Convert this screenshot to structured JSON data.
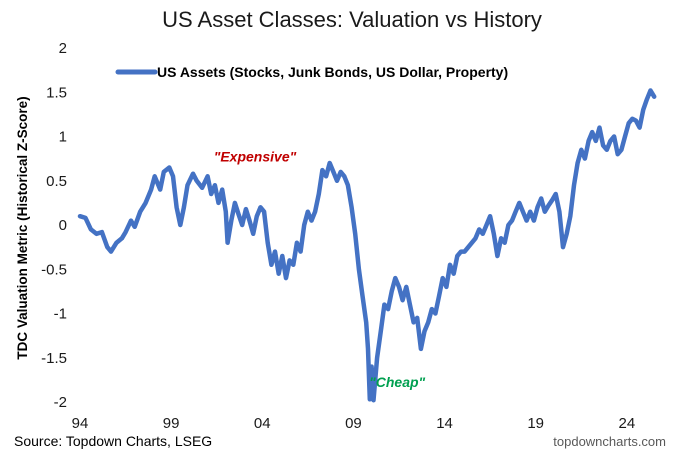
{
  "chart_data": {
    "type": "line",
    "title": "US Asset Classes: Valuation vs History",
    "xlabel": "",
    "ylabel": "TDC Valuation Metric (Historical Z-Score)",
    "xlim": [
      1994,
      2025.6
    ],
    "ylim": [
      -2,
      2
    ],
    "y_ticks": [
      "2",
      "1.5",
      "1",
      "0.5",
      "0",
      "-0.5",
      "-1",
      "-1.5",
      "-2"
    ],
    "y_tick_values": [
      2,
      1.5,
      1,
      0.5,
      0,
      -0.5,
      -1,
      -1.5,
      -2
    ],
    "x_ticks": [
      "94",
      "99",
      "04",
      "09",
      "14",
      "19",
      "24"
    ],
    "x_tick_values": [
      1994,
      1999,
      2004,
      2009,
      2014,
      2019,
      2024
    ],
    "grid": false,
    "legend_position": "top",
    "series": [
      {
        "name": "US Assets (Stocks, Junk Bonds, US Dollar, Property)",
        "color": "#4472C4",
        "points": [
          [
            1994.0,
            0.1
          ],
          [
            1994.3,
            0.08
          ],
          [
            1994.6,
            -0.05
          ],
          [
            1994.9,
            -0.1
          ],
          [
            1995.2,
            -0.08
          ],
          [
            1995.5,
            -0.25
          ],
          [
            1995.7,
            -0.3
          ],
          [
            1996.0,
            -0.2
          ],
          [
            1996.3,
            -0.15
          ],
          [
            1996.5,
            -0.08
          ],
          [
            1996.8,
            0.05
          ],
          [
            1997.0,
            -0.02
          ],
          [
            1997.3,
            0.15
          ],
          [
            1997.6,
            0.25
          ],
          [
            1997.9,
            0.4
          ],
          [
            1998.1,
            0.55
          ],
          [
            1998.4,
            0.4
          ],
          [
            1998.6,
            0.6
          ],
          [
            1998.9,
            0.65
          ],
          [
            1999.1,
            0.55
          ],
          [
            1999.3,
            0.2
          ],
          [
            1999.5,
            0.0
          ],
          [
            1999.7,
            0.2
          ],
          [
            1999.9,
            0.45
          ],
          [
            2000.2,
            0.58
          ],
          [
            2000.4,
            0.5
          ],
          [
            2000.7,
            0.42
          ],
          [
            2001.0,
            0.55
          ],
          [
            2001.2,
            0.35
          ],
          [
            2001.4,
            0.45
          ],
          [
            2001.6,
            0.25
          ],
          [
            2001.8,
            0.4
          ],
          [
            2002.0,
            0.15
          ],
          [
            2002.1,
            -0.2
          ],
          [
            2002.3,
            0.05
          ],
          [
            2002.5,
            0.25
          ],
          [
            2002.7,
            0.12
          ],
          [
            2002.9,
            0.0
          ],
          [
            2003.1,
            0.18
          ],
          [
            2003.3,
            0.05
          ],
          [
            2003.5,
            -0.1
          ],
          [
            2003.7,
            0.1
          ],
          [
            2003.9,
            0.2
          ],
          [
            2004.1,
            0.15
          ],
          [
            2004.3,
            -0.2
          ],
          [
            2004.5,
            -0.45
          ],
          [
            2004.7,
            -0.3
          ],
          [
            2004.9,
            -0.55
          ],
          [
            2005.1,
            -0.35
          ],
          [
            2005.3,
            -0.6
          ],
          [
            2005.5,
            -0.4
          ],
          [
            2005.7,
            -0.45
          ],
          [
            2005.9,
            -0.2
          ],
          [
            2006.1,
            -0.3
          ],
          [
            2006.3,
            0.0
          ],
          [
            2006.5,
            0.15
          ],
          [
            2006.7,
            0.05
          ],
          [
            2006.9,
            0.15
          ],
          [
            2007.1,
            0.35
          ],
          [
            2007.3,
            0.62
          ],
          [
            2007.5,
            0.55
          ],
          [
            2007.7,
            0.7
          ],
          [
            2007.9,
            0.6
          ],
          [
            2008.1,
            0.5
          ],
          [
            2008.3,
            0.6
          ],
          [
            2008.5,
            0.55
          ],
          [
            2008.7,
            0.45
          ],
          [
            2008.9,
            0.2
          ],
          [
            2009.1,
            -0.1
          ],
          [
            2009.3,
            -0.5
          ],
          [
            2009.5,
            -0.8
          ],
          [
            2009.7,
            -1.1
          ],
          [
            2009.8,
            -1.4
          ],
          [
            2009.9,
            -1.97
          ],
          [
            2010.0,
            -1.6
          ],
          [
            2010.1,
            -1.98
          ],
          [
            2010.3,
            -1.5
          ],
          [
            2010.5,
            -1.2
          ],
          [
            2010.7,
            -0.9
          ],
          [
            2010.9,
            -0.95
          ],
          [
            2011.1,
            -0.75
          ],
          [
            2011.3,
            -0.6
          ],
          [
            2011.5,
            -0.7
          ],
          [
            2011.7,
            -0.85
          ],
          [
            2011.9,
            -0.7
          ],
          [
            2012.1,
            -0.9
          ],
          [
            2012.3,
            -1.1
          ],
          [
            2012.5,
            -1.05
          ],
          [
            2012.7,
            -1.4
          ],
          [
            2012.9,
            -1.2
          ],
          [
            2013.1,
            -1.1
          ],
          [
            2013.3,
            -0.95
          ],
          [
            2013.5,
            -1.0
          ],
          [
            2013.7,
            -0.8
          ],
          [
            2013.9,
            -0.6
          ],
          [
            2014.1,
            -0.7
          ],
          [
            2014.3,
            -0.45
          ],
          [
            2014.5,
            -0.55
          ],
          [
            2014.7,
            -0.35
          ],
          [
            2014.9,
            -0.3
          ],
          [
            2015.1,
            -0.3
          ],
          [
            2015.3,
            -0.25
          ],
          [
            2015.5,
            -0.2
          ],
          [
            2015.7,
            -0.15
          ],
          [
            2015.9,
            -0.05
          ],
          [
            2016.1,
            -0.1
          ],
          [
            2016.3,
            0.0
          ],
          [
            2016.5,
            0.1
          ],
          [
            2016.7,
            -0.1
          ],
          [
            2016.9,
            -0.35
          ],
          [
            2017.1,
            -0.15
          ],
          [
            2017.3,
            -0.2
          ],
          [
            2017.5,
            0.0
          ],
          [
            2017.7,
            0.05
          ],
          [
            2017.9,
            0.15
          ],
          [
            2018.1,
            0.25
          ],
          [
            2018.3,
            0.15
          ],
          [
            2018.5,
            0.05
          ],
          [
            2018.7,
            0.15
          ],
          [
            2018.9,
            0.05
          ],
          [
            2019.1,
            0.2
          ],
          [
            2019.3,
            0.3
          ],
          [
            2019.5,
            0.15
          ],
          [
            2019.7,
            0.22
          ],
          [
            2019.9,
            0.28
          ],
          [
            2020.1,
            0.35
          ],
          [
            2020.3,
            0.15
          ],
          [
            2020.5,
            -0.25
          ],
          [
            2020.7,
            -0.1
          ],
          [
            2020.9,
            0.1
          ],
          [
            2021.1,
            0.45
          ],
          [
            2021.3,
            0.7
          ],
          [
            2021.5,
            0.85
          ],
          [
            2021.7,
            0.75
          ],
          [
            2021.9,
            0.95
          ],
          [
            2022.1,
            1.05
          ],
          [
            2022.3,
            0.95
          ],
          [
            2022.5,
            1.1
          ],
          [
            2022.7,
            0.9
          ],
          [
            2022.9,
            0.85
          ],
          [
            2023.1,
            0.95
          ],
          [
            2023.3,
            1.0
          ],
          [
            2023.5,
            0.8
          ],
          [
            2023.7,
            0.85
          ],
          [
            2023.9,
            1.0
          ],
          [
            2024.1,
            1.15
          ],
          [
            2024.3,
            1.2
          ],
          [
            2024.5,
            1.18
          ],
          [
            2024.7,
            1.1
          ],
          [
            2024.9,
            1.3
          ],
          [
            2025.1,
            1.42
          ],
          [
            2025.3,
            1.52
          ],
          [
            2025.5,
            1.45
          ]
        ]
      }
    ],
    "annotations": [
      {
        "text": "\"Expensive\"",
        "x": 2003.6,
        "y": 0.72,
        "color": "#C00000"
      },
      {
        "text": "\"Cheap\"",
        "x": 2011.4,
        "y": -1.83,
        "color": "#00A050"
      }
    ],
    "source": "Source: Topdown Charts, LSEG",
    "credit": "topdowncharts.com"
  }
}
